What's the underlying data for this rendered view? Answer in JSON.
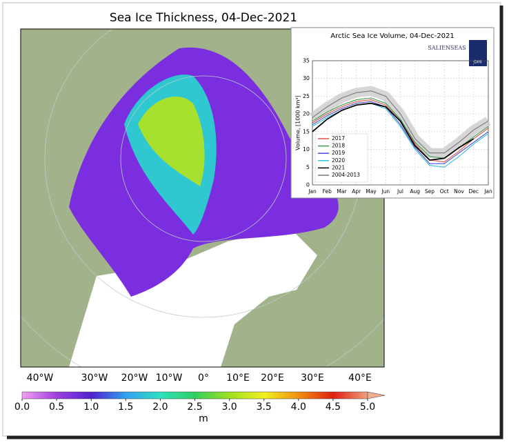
{
  "map": {
    "title": "Sea Ice Thickness, 04-Dec-2021",
    "longitudes": [
      "40°W",
      "30°W",
      "20°W",
      "10°W",
      "0°",
      "10°E",
      "20°E",
      "30°E",
      "40°E"
    ],
    "colorbar": {
      "ticks": [
        {
          "value": 0,
          "label": "0.0"
        },
        0.5,
        {
          "value": 1,
          "label": "1.0"
        },
        1.5,
        {
          "value": 2,
          "label": "2.0"
        },
        2.5,
        {
          "value": 3,
          "label": "3.0"
        },
        3.5,
        {
          "value": 4,
          "label": "4.0"
        },
        4.5,
        {
          "value": 5,
          "label": "5.0"
        }
      ],
      "lim": [
        0,
        5
      ],
      "unit": "m"
    }
  },
  "chart_data": {
    "type": "line",
    "title": "Arctic Sea Ice Volume, 04-Dec-2021",
    "y_label": "Volume, [1000 km³]",
    "logo": "SALIENSEAS",
    "logo_badge": "DMI",
    "categories": [
      "Jan",
      "Feb",
      "Mar",
      "Apr",
      "May",
      "Jun",
      "Jul",
      "Aug",
      "Sep",
      "Oct",
      "Nov",
      "Dec",
      "Jan"
    ],
    "ylim": [
      0,
      35
    ],
    "yticks": [
      0,
      5,
      10,
      15,
      20,
      25,
      30,
      35
    ],
    "grid": true,
    "legend": "lower left",
    "series": [
      {
        "name": "2017",
        "color": "#e05040",
        "values": [
          17.5,
          20,
          22,
          23.5,
          24,
          22.5,
          18,
          11.5,
          7,
          6.5,
          9.5,
          13,
          16
        ]
      },
      {
        "name": "2018",
        "color": "#3a9a4a",
        "values": [
          18,
          20.5,
          22.5,
          24,
          24.5,
          23,
          18.5,
          12,
          8,
          7.5,
          10.5,
          13.5,
          16.5
        ]
      },
      {
        "name": "2019",
        "color": "#4b4bd8",
        "values": [
          17,
          19.5,
          21.5,
          23,
          23.5,
          22,
          17,
          10.5,
          6,
          6,
          9,
          12,
          15
        ]
      },
      {
        "name": "2020",
        "color": "#30c0d8",
        "values": [
          16.5,
          19,
          21,
          22.5,
          23,
          21.5,
          16.5,
          10,
          5.5,
          5,
          8,
          11.5,
          14.5
        ]
      },
      {
        "name": "2021",
        "color": "#000000",
        "values": [
          15,
          18.5,
          21,
          22.5,
          23,
          22,
          18,
          11,
          7,
          7.5,
          10.5,
          13,
          null
        ]
      },
      {
        "name": "2004-2013",
        "color": "#777777",
        "values": [
          19,
          22,
          24.5,
          26,
          26.5,
          25,
          20,
          13,
          9,
          9,
          12,
          15.5,
          18
        ]
      }
    ]
  }
}
